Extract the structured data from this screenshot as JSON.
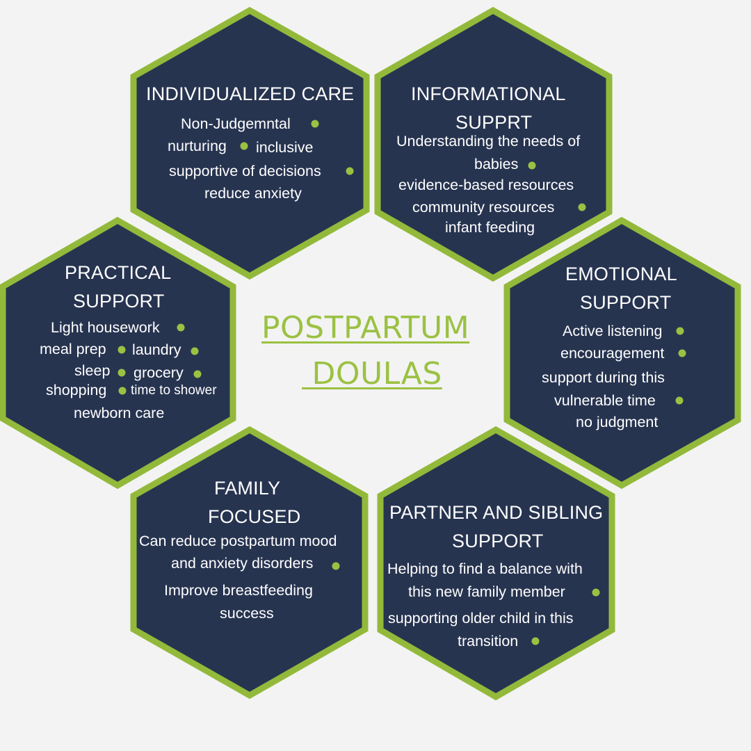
{
  "title": {
    "line1": "POSTPARTUM",
    "line2": " DOULAS"
  },
  "colors": {
    "background": "#f3f3f3",
    "hex_fill": "#273450",
    "hex_border": "#93b93b",
    "accent": "#9bc142",
    "text": "#ffffff"
  },
  "hexagons": {
    "individualized": {
      "heading": "INDIVIDUALIZED CARE",
      "items": [
        "Non-Judgemntal",
        "nurturing",
        "inclusive",
        "supportive of decisions",
        "reduce anxiety"
      ]
    },
    "informational": {
      "heading_line1": "INFORMATIONAL",
      "heading_line2": "SUPPRT",
      "items": [
        "Understanding the needs of",
        "babies",
        "evidence-based resources",
        "community resources",
        "infant feeding"
      ]
    },
    "practical": {
      "heading_line1": "PRACTICAL",
      "heading_line2": "SUPPORT",
      "items": [
        "Light housework",
        "meal prep",
        "laundry",
        "sleep",
        "grocery",
        "shopping",
        "time to shower",
        "newborn care"
      ]
    },
    "emotional": {
      "heading_line1": "EMOTIONAL",
      "heading_line2": "SUPPORT",
      "items": [
        "Active listening",
        "encouragement",
        "support during this",
        "vulnerable time",
        "no judgment"
      ]
    },
    "family": {
      "heading_line1": "FAMILY",
      "heading_line2": "FOCUSED",
      "items": [
        "Can reduce postpartum mood",
        "and anxiety disorders",
        "Improve breastfeeding",
        "success"
      ]
    },
    "partner": {
      "heading_line1": "PARTNER AND SIBLING",
      "heading_line2": "SUPPORT",
      "items": [
        "Helping to find a balance with",
        "this new family member",
        "supporting older child in this",
        "transition"
      ]
    }
  }
}
